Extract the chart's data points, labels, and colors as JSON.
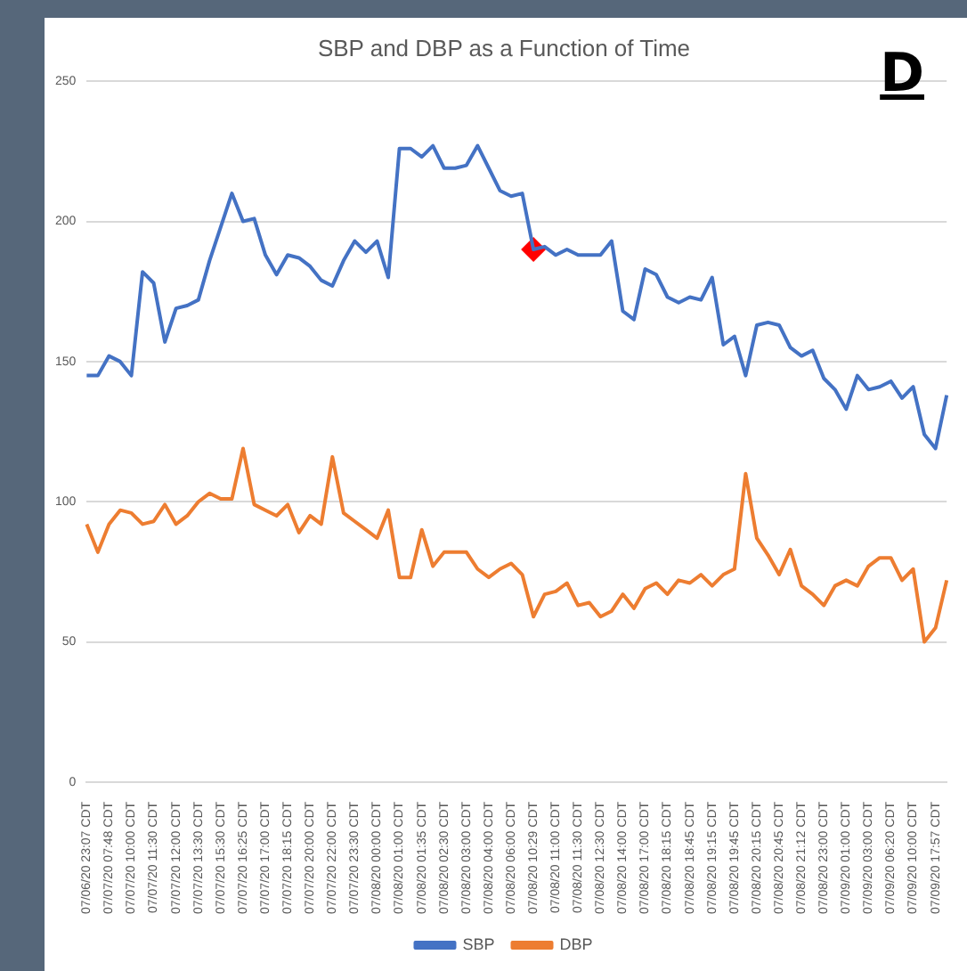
{
  "chart_data": {
    "type": "line",
    "title": "SBP and DBP as a Function of Time",
    "categories": [
      "07/06/20 23:07 CDT",
      null,
      "07/07/20 07:48 CDT",
      null,
      "07/07/20 10:00 CDT",
      null,
      "07/07/20 11:30 CDT",
      null,
      "07/07/20 12:00 CDT",
      null,
      "07/07/20 13:30 CDT",
      null,
      "07/07/20 15:30 CDT",
      null,
      "07/07/20 16:25 CDT",
      null,
      "07/07/20 17:00 CDT",
      null,
      "07/07/20 18:15 CDT",
      null,
      "07/07/20 20:00 CDT",
      null,
      "07/07/20 22:00 CDT",
      null,
      "07/07/20 23:30 CDT",
      null,
      "07/08/20 00:00 CDT",
      null,
      "07/08/20 01:00 CDT",
      null,
      "07/08/20 01:35 CDT",
      null,
      "07/08/20 02:30 CDT",
      null,
      "07/08/20 03:00 CDT",
      null,
      "07/08/20 04:00 CDT",
      null,
      "07/08/20 06:00 CDT",
      null,
      "07/08/20 10:29 CDT",
      null,
      "07/08/20 11:00 CDT",
      null,
      "07/08/20 11:30 CDT",
      null,
      "07/08/20 12:30 CDT",
      null,
      "07/08/20 14:00 CDT",
      null,
      "07/08/20 17:00 CDT",
      null,
      "07/08/20 18:15 CDT",
      null,
      "07/08/20 18:45 CDT",
      null,
      "07/08/20 19:15 CDT",
      null,
      "07/08/20 19:45 CDT",
      null,
      "07/08/20 20:15 CDT",
      null,
      "07/08/20 20:45 CDT",
      null,
      "07/08/20 21:12 CDT",
      null,
      "07/08/20 23:00 CDT",
      null,
      "07/09/20 01:00 CDT",
      null,
      "07/09/20 03:00 CDT",
      null,
      "07/09/20 06:20 CDT",
      null,
      "07/09/20 10:00 CDT",
      null,
      "07/09/20 17:57 CDT",
      null
    ],
    "series": [
      {
        "name": "SBP",
        "color": "#4472c4",
        "values": [
          145,
          145,
          152,
          150,
          145,
          182,
          178,
          157,
          169,
          170,
          172,
          186,
          198,
          210,
          200,
          201,
          188,
          181,
          188,
          187,
          184,
          179,
          177,
          186,
          193,
          189,
          193,
          180,
          226,
          226,
          223,
          227,
          219,
          219,
          220,
          227,
          219,
          211,
          209,
          210,
          190,
          191,
          188,
          190,
          188,
          188,
          188,
          193,
          168,
          165,
          183,
          181,
          173,
          171,
          173,
          172,
          180,
          156,
          159,
          145,
          163,
          164,
          163,
          155,
          152,
          154,
          144,
          140,
          133,
          145,
          140,
          141,
          143,
          137,
          141,
          124,
          119,
          138
        ]
      },
      {
        "name": "DBP",
        "color": "#ed7d31",
        "values": [
          92,
          82,
          92,
          97,
          96,
          92,
          93,
          99,
          92,
          95,
          100,
          103,
          101,
          101,
          119,
          99,
          97,
          95,
          99,
          89,
          95,
          92,
          116,
          96,
          93,
          90,
          87,
          97,
          73,
          73,
          90,
          77,
          82,
          82,
          82,
          76,
          73,
          76,
          78,
          74,
          59,
          67,
          68,
          71,
          63,
          64,
          59,
          61,
          67,
          62,
          69,
          71,
          67,
          72,
          71,
          74,
          70,
          74,
          76,
          110,
          87,
          81,
          74,
          83,
          70,
          67,
          63,
          70,
          72,
          70,
          77,
          80,
          80,
          72,
          76,
          50,
          55,
          72
        ]
      },
      {
        "type": "scatter",
        "color": "#ff0000",
        "marker": "diamond",
        "x": [
          "07/08/20 10:29 CDT"
        ],
        "values": [
          190
        ]
      }
    ],
    "ylim": [
      0,
      250
    ],
    "yticks": [
      0,
      50,
      100,
      150,
      200,
      250
    ],
    "grid": "y",
    "legend": "bottom",
    "marker": "none",
    "annotations": [
      "D"
    ]
  }
}
